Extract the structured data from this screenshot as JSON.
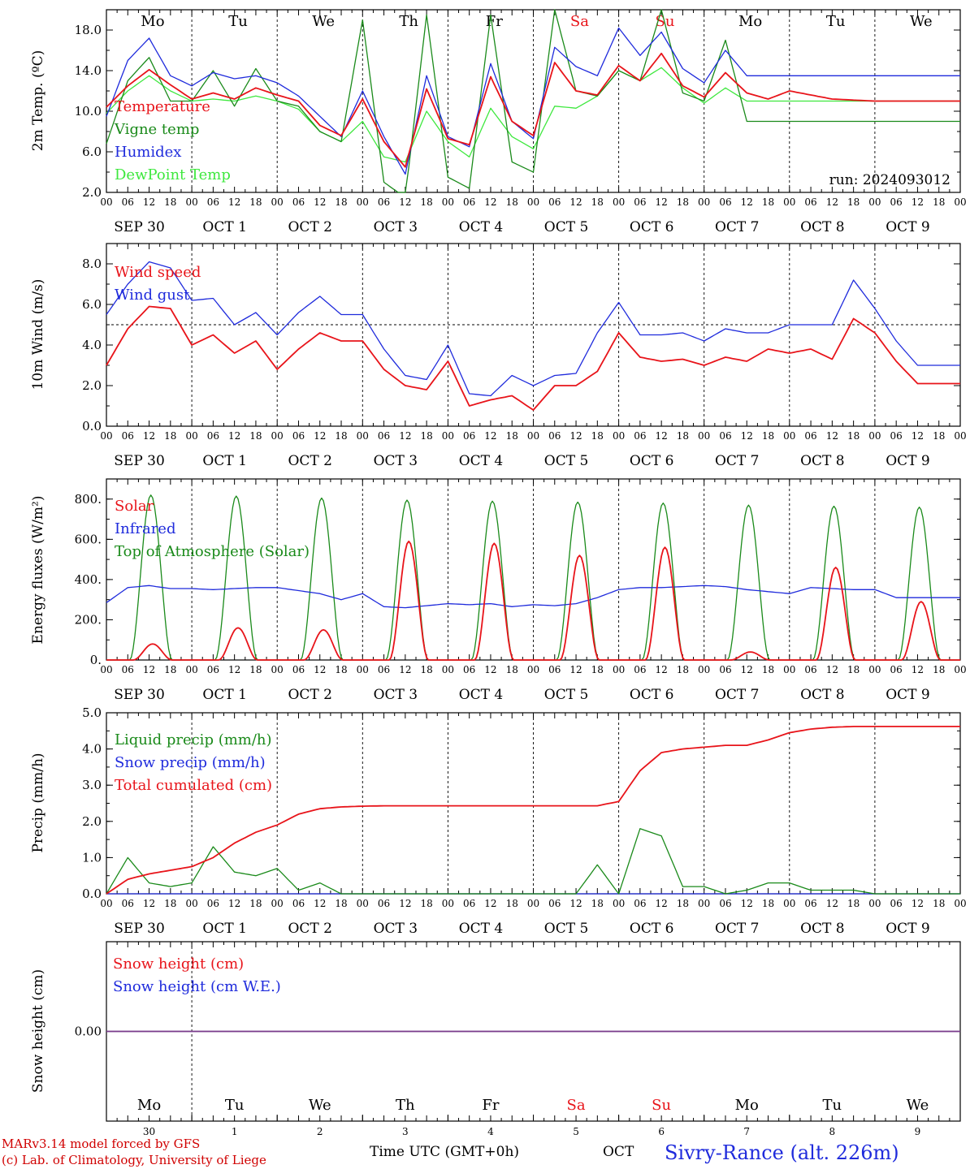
{
  "colors": {
    "red": "#e8141a",
    "green": "#1a8a1a",
    "blue": "#1f2bdc",
    "lightgreen": "#3ee83e",
    "purple": "#7a3c8c",
    "black": "#000000"
  },
  "days": [
    {
      "abbr": "Mo",
      "date": "SEP 30",
      "num": "30",
      "weekend": false
    },
    {
      "abbr": "Tu",
      "date": "OCT  1",
      "num": "1",
      "weekend": false
    },
    {
      "abbr": "We",
      "date": "OCT  2",
      "num": "2",
      "weekend": false
    },
    {
      "abbr": "Th",
      "date": "OCT  3",
      "num": "3",
      "weekend": false
    },
    {
      "abbr": "Fr",
      "date": "OCT  4",
      "num": "4",
      "weekend": false
    },
    {
      "abbr": "Sa",
      "date": "OCT  5",
      "num": "5",
      "weekend": true
    },
    {
      "abbr": "Su",
      "date": "OCT  6",
      "num": "6",
      "weekend": true
    },
    {
      "abbr": "Mo",
      "date": "OCT  7",
      "num": "7",
      "weekend": false
    },
    {
      "abbr": "Tu",
      "date": "OCT  8",
      "num": "8",
      "weekend": false
    },
    {
      "abbr": "We",
      "date": "OCT  9",
      "num": "9",
      "weekend": false
    }
  ],
  "hour_labels": [
    "00",
    "06",
    "12",
    "18"
  ],
  "footer": {
    "model": "MARv3.14 model forced by GFS",
    "credit": "(c) Lab. of Climatology, University of Liege",
    "time_label": "Time UTC (GMT+0h)",
    "month": "OCT",
    "site": "Sivry-Rance (alt. 226m)"
  },
  "chart_data": [
    {
      "type": "line",
      "ylabel": "2m Temp. (ºC)",
      "ylim": [
        2,
        20
      ],
      "yticks": [
        "2.0",
        "6.0",
        "10.0",
        "14.0",
        "18.0"
      ],
      "annotation": "run: 2024093012",
      "x_hours": [
        0,
        6,
        12,
        18,
        24,
        30,
        36,
        42,
        48,
        54,
        60,
        66,
        72,
        78,
        84,
        90,
        96,
        102,
        108,
        114,
        120,
        126,
        132,
        138,
        144,
        150,
        156,
        162,
        168,
        174,
        180,
        186,
        192,
        198,
        204,
        210,
        216,
        222,
        228,
        234,
        240
      ],
      "series": [
        {
          "name": "Temperature",
          "color": "red",
          "values": [
            10.4,
            12.5,
            14.1,
            12.6,
            11.2,
            11.8,
            11.2,
            12.3,
            11.6,
            11.0,
            8.6,
            7.6,
            11.2,
            7.0,
            4.5,
            12.2,
            7.3,
            6.7,
            13.4,
            9.0,
            7.6,
            14.8,
            12.0,
            11.6,
            14.5,
            13.0,
            15.7,
            12.5,
            11.4,
            13.8,
            11.8,
            11.2,
            12.0,
            11.6,
            11.2,
            11.1,
            11.0,
            11.0,
            11.0,
            11.0,
            11.0
          ]
        },
        {
          "name": "Vigne temp",
          "color": "green",
          "values": [
            6.8,
            13.0,
            15.3,
            11.0,
            11.0,
            14.0,
            10.5,
            14.2,
            11.0,
            10.5,
            8.0,
            7.0,
            19.0,
            3.0,
            1.5,
            19.5,
            3.5,
            2.4,
            19.5,
            5.0,
            4.0,
            20.0,
            12.0,
            11.5,
            14.0,
            13.0,
            20.0,
            11.8,
            11.0,
            17.0,
            9.0,
            9.0,
            9.0,
            9.0,
            9.0,
            9.0,
            9.0,
            9.0,
            9.0,
            9.0,
            9.0
          ]
        },
        {
          "name": "Humidex",
          "color": "blue",
          "values": [
            9.5,
            15.0,
            17.2,
            13.5,
            12.5,
            13.8,
            13.2,
            13.5,
            12.8,
            11.5,
            9.5,
            7.5,
            12.0,
            7.5,
            3.8,
            13.5,
            7.5,
            6.5,
            14.7,
            9.0,
            7.3,
            16.3,
            14.4,
            13.5,
            18.2,
            15.5,
            17.8,
            14.2,
            12.8,
            16.0,
            13.5,
            13.5,
            13.5,
            13.5,
            13.5,
            13.5,
            13.5,
            13.5,
            13.5,
            13.5,
            13.5
          ]
        },
        {
          "name": "DewPoint Temp",
          "color": "lightgreen",
          "values": [
            9.8,
            12.0,
            13.5,
            12.0,
            11.0,
            11.2,
            11.0,
            11.5,
            11.0,
            10.2,
            8.0,
            7.0,
            9.0,
            5.5,
            5.0,
            10.0,
            7.0,
            5.5,
            10.3,
            7.5,
            6.3,
            10.5,
            10.3,
            11.5,
            14.0,
            13.0,
            14.3,
            12.3,
            10.8,
            12.3,
            11.0,
            11.0,
            11.0,
            11.0,
            11.0,
            11.0,
            11.0,
            11.0,
            11.0,
            11.0,
            11.0
          ]
        }
      ]
    },
    {
      "type": "line",
      "ylabel": "10m Wind (m/s)",
      "ylim": [
        0,
        9
      ],
      "yticks": [
        "0.0",
        "2.0",
        "4.0",
        "6.0",
        "8.0"
      ],
      "reference_line": 5.0,
      "x_hours": [
        0,
        6,
        12,
        18,
        24,
        30,
        36,
        42,
        48,
        54,
        60,
        66,
        72,
        78,
        84,
        90,
        96,
        102,
        108,
        114,
        120,
        126,
        132,
        138,
        144,
        150,
        156,
        162,
        168,
        174,
        180,
        186,
        192,
        198,
        204,
        210,
        216,
        222,
        228,
        234,
        240
      ],
      "series": [
        {
          "name": "Wind speed",
          "color": "red",
          "values": [
            3.0,
            4.8,
            5.9,
            5.8,
            4.0,
            4.5,
            3.6,
            4.2,
            2.8,
            3.8,
            4.6,
            4.2,
            4.2,
            2.8,
            2.0,
            1.8,
            3.2,
            1.0,
            1.3,
            1.5,
            0.8,
            2.0,
            2.0,
            2.7,
            4.6,
            3.4,
            3.2,
            3.3,
            3.0,
            3.4,
            3.2,
            3.8,
            3.6,
            3.8,
            3.3,
            5.3,
            4.6,
            3.2,
            2.1,
            2.1,
            2.1
          ]
        },
        {
          "name": "Wind gust",
          "color": "blue",
          "values": [
            5.5,
            7.0,
            8.1,
            7.8,
            6.2,
            6.3,
            5.0,
            5.6,
            4.5,
            5.6,
            6.4,
            5.5,
            5.5,
            3.8,
            2.5,
            2.3,
            4.0,
            1.6,
            1.5,
            2.5,
            2.0,
            2.5,
            2.6,
            4.6,
            6.1,
            4.5,
            4.5,
            4.6,
            4.2,
            4.8,
            4.6,
            4.6,
            5.0,
            5.0,
            5.0,
            7.2,
            5.8,
            4.2,
            3.0,
            3.0,
            3.0
          ]
        }
      ]
    },
    {
      "type": "line",
      "ylabel": "Energy fluxes (W/m²)",
      "ylim": [
        0,
        900
      ],
      "yticks": [
        "0.",
        "200.",
        "400.",
        "600.",
        "800."
      ],
      "x_hours": [
        0,
        6,
        12,
        18,
        24,
        30,
        36,
        42,
        48,
        54,
        60,
        66,
        72,
        78,
        84,
        90,
        96,
        102,
        108,
        114,
        120,
        126,
        132,
        138,
        144,
        150,
        156,
        162,
        168,
        174,
        180,
        186,
        192,
        198,
        204,
        210,
        216,
        222,
        228,
        234,
        240
      ],
      "series": [
        {
          "name": "Solar",
          "color": "red",
          "peaks": [
            80,
            160,
            150,
            590,
            580,
            520,
            560,
            40,
            460,
            290
          ]
        },
        {
          "name": "Infrared",
          "color": "blue",
          "values": [
            285,
            360,
            370,
            355,
            355,
            350,
            355,
            360,
            360,
            345,
            330,
            300,
            330,
            265,
            260,
            270,
            280,
            275,
            280,
            265,
            275,
            270,
            280,
            310,
            350,
            360,
            360,
            365,
            370,
            365,
            350,
            340,
            330,
            360,
            355,
            350,
            350,
            310,
            310,
            310,
            310
          ]
        },
        {
          "name": "Top of Atmosphere (Solar)",
          "color": "green",
          "peaks": [
            820,
            815,
            805,
            795,
            790,
            785,
            780,
            770,
            765,
            760
          ]
        }
      ]
    },
    {
      "type": "line",
      "ylabel": "Precip (mm/h)",
      "ylim": [
        0,
        5
      ],
      "yticks": [
        "0.0",
        "1.0",
        "2.0",
        "3.0",
        "4.0",
        "5.0"
      ],
      "x_hours": [
        0,
        6,
        12,
        18,
        24,
        30,
        36,
        42,
        48,
        54,
        60,
        66,
        72,
        78,
        84,
        90,
        96,
        102,
        108,
        114,
        120,
        126,
        132,
        138,
        144,
        150,
        156,
        162,
        168,
        174,
        180,
        186,
        192,
        198,
        204,
        210,
        216,
        222,
        228,
        234,
        240
      ],
      "series": [
        {
          "name": "Liquid precip (mm/h)",
          "color": "green",
          "values": [
            0,
            1.0,
            0.3,
            0.2,
            0.3,
            1.3,
            0.6,
            0.5,
            0.7,
            0.1,
            0.3,
            0.0,
            0,
            0,
            0,
            0,
            0,
            0,
            0,
            0,
            0,
            0,
            0,
            0.8,
            0.0,
            1.8,
            1.6,
            0.2,
            0.2,
            0,
            0.1,
            0.3,
            0.3,
            0.1,
            0.1,
            0.1,
            0,
            0,
            0,
            0,
            0
          ]
        },
        {
          "name": "Snow precip (mm/h)",
          "color": "blue",
          "values": [
            0,
            0,
            0,
            0,
            0,
            0,
            0,
            0,
            0,
            0,
            0,
            0,
            0,
            0,
            0,
            0,
            0,
            0,
            0,
            0,
            0,
            0,
            0,
            0,
            0,
            0,
            0,
            0,
            0,
            0,
            0,
            0,
            0,
            0,
            0,
            0,
            0,
            0,
            0,
            0,
            0
          ]
        },
        {
          "name": "Total cumulated (cm)",
          "color": "red",
          "values": [
            0.0,
            0.4,
            0.55,
            0.65,
            0.75,
            1.0,
            1.4,
            1.7,
            1.9,
            2.2,
            2.35,
            2.4,
            2.42,
            2.43,
            2.43,
            2.43,
            2.43,
            2.43,
            2.43,
            2.43,
            2.43,
            2.43,
            2.43,
            2.43,
            2.55,
            3.4,
            3.9,
            4.0,
            4.05,
            4.1,
            4.1,
            4.25,
            4.45,
            4.55,
            4.6,
            4.62,
            4.62,
            4.62,
            4.62,
            4.62,
            4.62
          ]
        }
      ]
    },
    {
      "type": "line",
      "ylabel": "Snow height (cm)",
      "ylim": [
        -1,
        1
      ],
      "yticks": [
        "0.00"
      ],
      "series": [
        {
          "name": "Snow height (cm)",
          "color": "red",
          "values": [
            0,
            0
          ]
        },
        {
          "name": "Snow height (cm W.E.)",
          "color": "blue",
          "values": [
            0,
            0
          ]
        }
      ]
    }
  ]
}
